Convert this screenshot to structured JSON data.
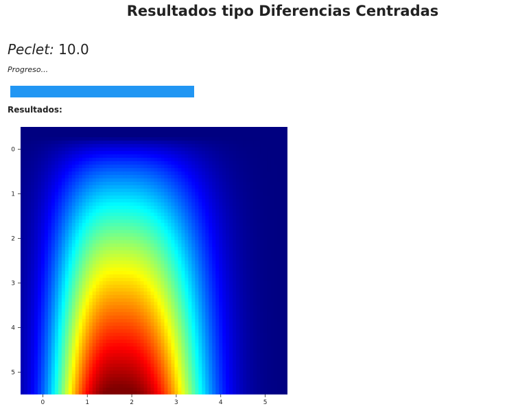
{
  "header": {
    "title": "Resultados tipo Diferencias Centradas"
  },
  "peclet": {
    "label": "Peclet:",
    "value": "10.0"
  },
  "progress": {
    "label": "Progreso...",
    "fraction": 1.0,
    "color": "#2196f3"
  },
  "results": {
    "label": "Resultados:"
  },
  "chart_data": {
    "type": "heatmap",
    "title": "",
    "xlabel": "",
    "ylabel": "",
    "colormap": "jet",
    "xlim": [
      -0.5,
      5.5
    ],
    "ylim": [
      5.5,
      -0.5
    ],
    "x_ticks": [
      "0",
      "1",
      "2",
      "3",
      "4",
      "5"
    ],
    "y_ticks": [
      "0",
      "1",
      "2",
      "3",
      "4",
      "5"
    ],
    "peak": {
      "x": 1.7,
      "y": 5.5
    }
  }
}
